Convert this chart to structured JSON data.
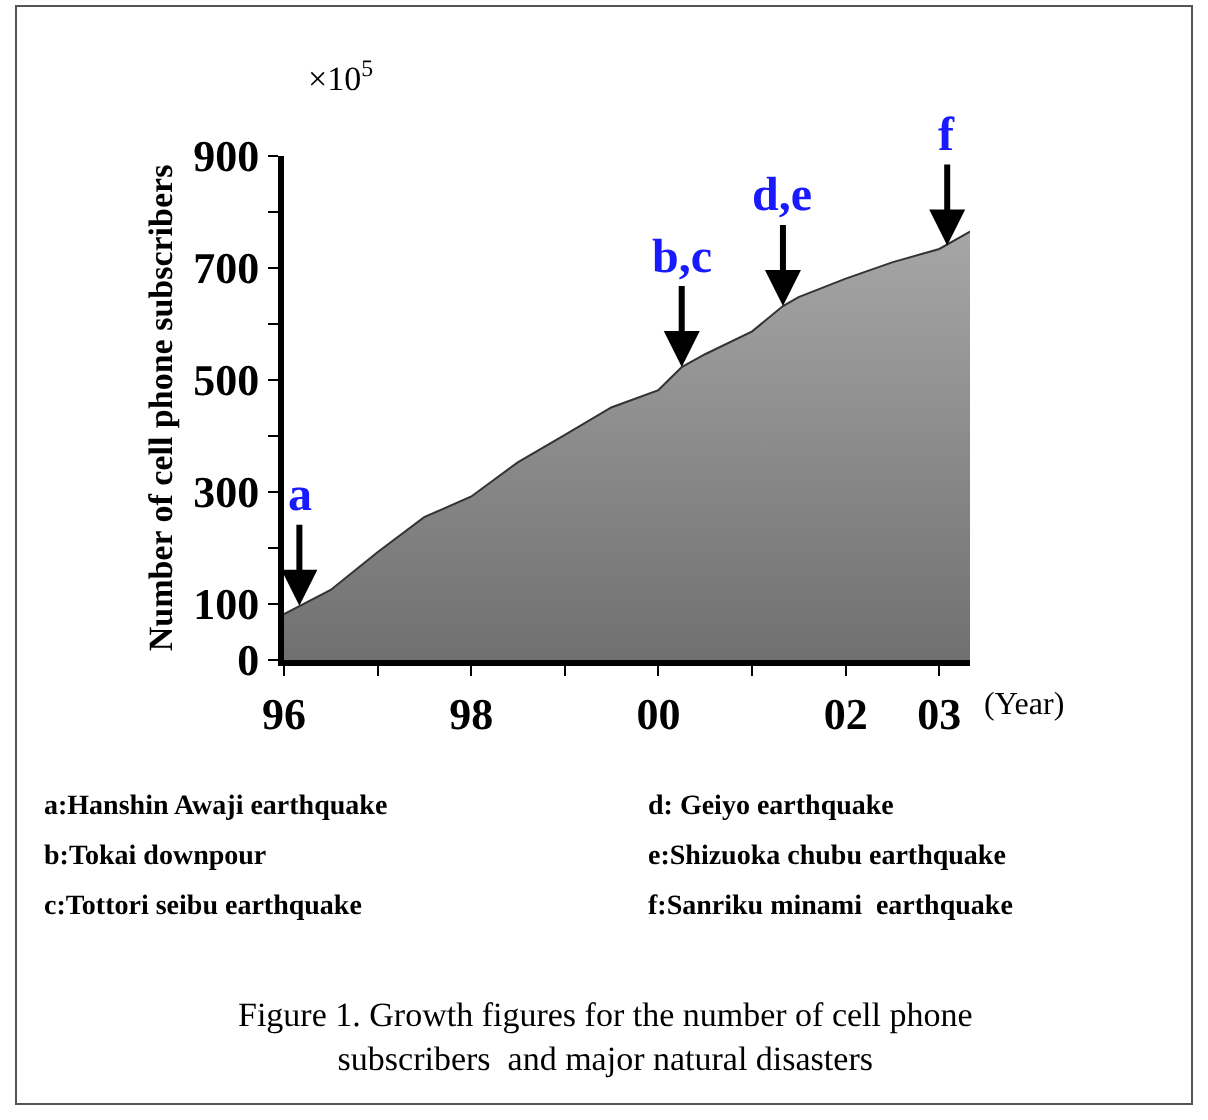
{
  "chart_data": {
    "type": "area",
    "xlabel": "(Year)",
    "ylabel": "Number of cell phone subscribers",
    "x": [
      "1996-01",
      "1996-07",
      "1997-01",
      "1997-07",
      "1998-01",
      "1998-07",
      "1999-01",
      "1999-07",
      "2000-01",
      "2000-04",
      "2000-07",
      "2001-01",
      "2001-05",
      "2001-07",
      "2002-01",
      "2002-07",
      "2003-01",
      "2003-05"
    ],
    "series": [
      {
        "color": "#a6a6a6",
        "values": [
          82,
          125,
          193,
          255,
          292,
          353,
          402,
          451,
          482,
          523,
          546,
          587,
          632,
          648,
          681,
          710,
          734,
          765
        ]
      }
    ],
    "xlim": [
      "1996-01",
      "2003-05"
    ],
    "ylim": [
      0,
      900
    ],
    "xticks": [
      {
        "value": "1996",
        "label": "96"
      },
      {
        "value": "1997",
        "label": null
      },
      {
        "value": "1998",
        "label": "98"
      },
      {
        "value": "1999",
        "label": null
      },
      {
        "value": "2000",
        "label": "00"
      },
      {
        "value": "2001",
        "label": null
      },
      {
        "value": "2002",
        "label": "02"
      },
      {
        "value": "2003",
        "label": "03"
      }
    ],
    "yticks": [
      0,
      100,
      {
        "value": 200,
        "label": null
      },
      300,
      {
        "value": 400,
        "label": null
      },
      500,
      {
        "value": 600,
        "label": null
      },
      700,
      {
        "value": 800,
        "label": null
      },
      900
    ],
    "annotations": [
      {
        "text": "a",
        "x": "1996-03",
        "y": 97
      },
      {
        "text": "b,c",
        "x": "2000-04",
        "y": 523
      },
      {
        "text": "d,e",
        "x": "2001-05",
        "y": 632
      },
      {
        "text": "f",
        "x": "2003-02",
        "y": 740
      },
      "×10$^{5}$",
      "a:Hanshin Awaji earthquake",
      "b:Tokai downpour",
      "c:Tottori seibu earthquake",
      "d: Geiyo earthquake",
      "e:Shizuoka chubu earthquake",
      "f:Sanriku minami  earthquake",
      "Figure 1. Growth figures for the number of cell phone\nsubscribers  and major natural disasters"
    ]
  }
}
